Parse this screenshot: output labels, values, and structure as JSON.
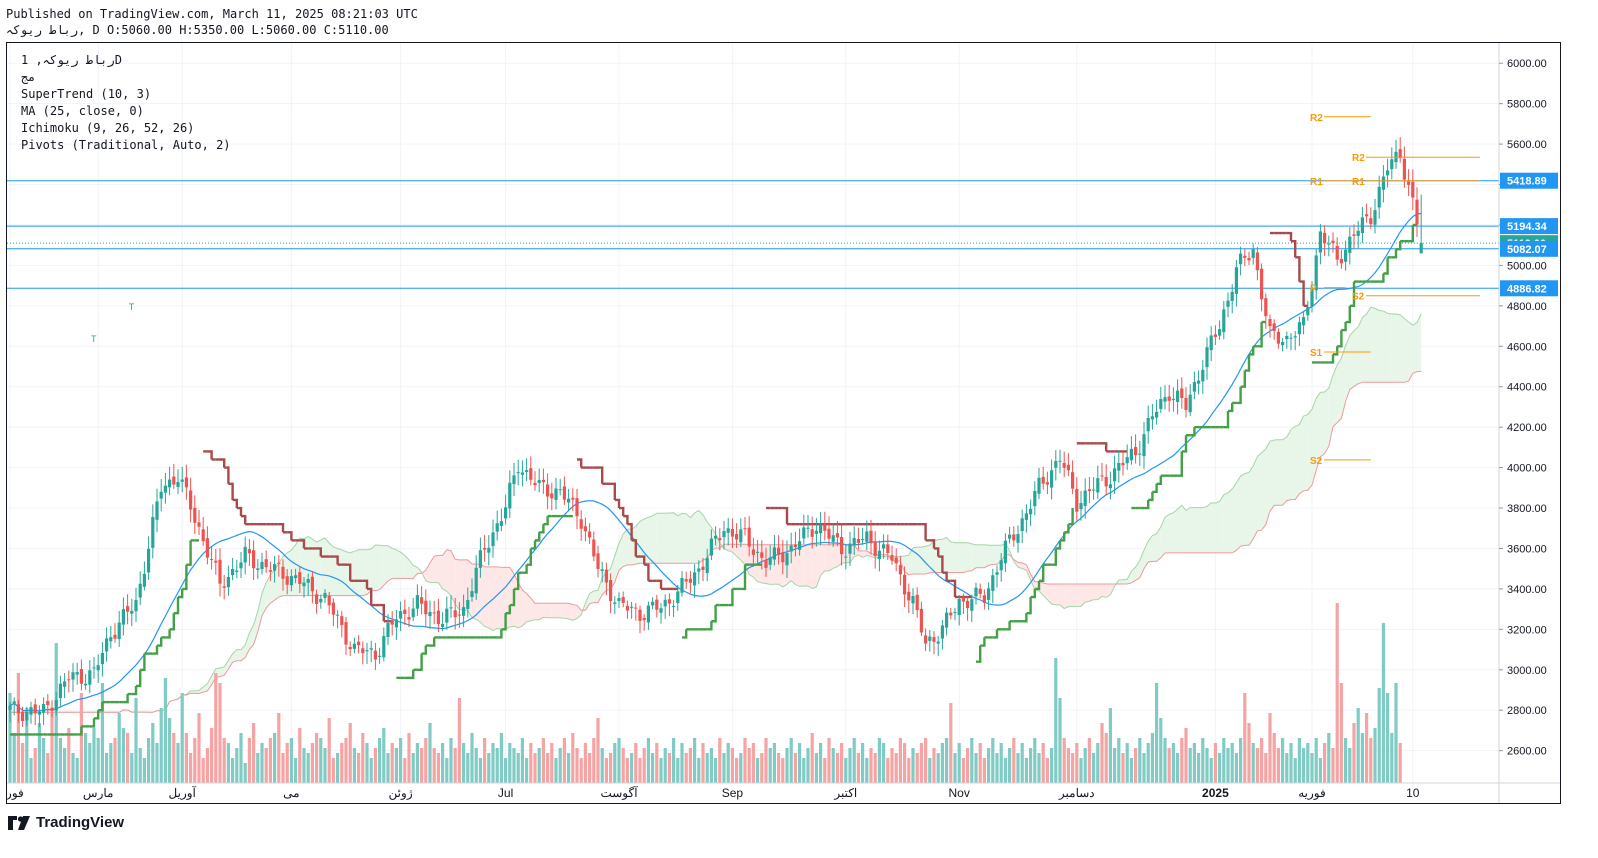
{
  "header": {
    "published_line": "Published on TradingView.com, March 11, 2025 08:21:03 UTC",
    "ohlc_line": "رباط ریوکہ, D O:5060.00 H:5350.00 L:5060.00 C:5110.00"
  },
  "legend": {
    "symbol_line": "رباط ریوکہ, 1D",
    "exchange_line": "مج",
    "indicators": [
      "SuperTrend (10, 3)",
      "MA (25, close, 0)",
      "Ichimoku (9, 26, 52, 26)",
      "Pivots (Traditional, Auto, 2)"
    ]
  },
  "brand": {
    "name": "TradingView"
  },
  "colors": {
    "up": "#26a69a",
    "down": "#ef5350",
    "supertrend_up": "#43a047",
    "supertrend_down": "#a84a4a",
    "ma": "#2196f3",
    "pivot": "#ff9800",
    "hline": "#2196f3",
    "cloud_up": "#e8f5e9",
    "cloud_down": "#fde7e7"
  },
  "chart_data": {
    "type": "candlestick",
    "y_axis": {
      "min": 2440,
      "max": 6100,
      "ticks": [
        "2600.00",
        "2800.00",
        "3000.00",
        "3200.00",
        "3400.00",
        "3600.00",
        "3800.00",
        "4000.00",
        "4200.00",
        "4400.00",
        "4600.00",
        "4800.00",
        "5000.00",
        "5200.00",
        "5400.00",
        "5600.00",
        "5800.00",
        "6000.00"
      ]
    },
    "x_axis": {
      "labels": [
        {
          "text": "فوریه",
          "bar": 0
        },
        {
          "text": "مارس",
          "bar": 21
        },
        {
          "text": "آوریل",
          "bar": 41
        },
        {
          "text": "می",
          "bar": 67
        },
        {
          "text": "ژوئن",
          "bar": 93
        },
        {
          "text": "Jul",
          "bar": 118
        },
        {
          "text": "آگوست",
          "bar": 145
        },
        {
          "text": "Sep",
          "bar": 172
        },
        {
          "text": "اکتبر",
          "bar": 199
        },
        {
          "text": "Nov",
          "bar": 226
        },
        {
          "text": "دسامبر",
          "bar": 254
        },
        {
          "text": "2025",
          "bar": 287,
          "bold": true
        },
        {
          "text": "فوریه",
          "bar": 310
        },
        {
          "text": "10",
          "bar": 334
        }
      ]
    },
    "price_labels": [
      {
        "value": 5418.89,
        "text": "5418.89",
        "color": "#2196f3"
      },
      {
        "value": 5194.34,
        "text": "5194.34",
        "color": "#2196f3"
      },
      {
        "value": 5110.0,
        "text": "5110.00",
        "color": "#26a69a"
      },
      {
        "value": 5082.07,
        "text": "5082.07",
        "color": "#2196f3"
      },
      {
        "value": 4886.82,
        "text": "4886.82",
        "color": "#2196f3"
      }
    ],
    "pivot_levels": [
      {
        "label": "R2",
        "value": 5735,
        "from": 310,
        "to": 324
      },
      {
        "label": "R1",
        "value": 5418,
        "from": 310,
        "to": 322
      },
      {
        "label": "P",
        "value": 4890,
        "from": 310,
        "to": 318
      },
      {
        "label": "S1",
        "value": 4572,
        "from": 310,
        "to": 324
      },
      {
        "label": "S2",
        "value": 4038,
        "from": 310,
        "to": 324
      },
      {
        "label": "R2",
        "value": 5535,
        "from": 320,
        "to": 350
      },
      {
        "label": "R1",
        "value": 5418,
        "from": 320,
        "to": 350
      },
      {
        "label": "S2",
        "value": 4850,
        "from": 320,
        "to": 350
      }
    ],
    "markers": [
      {
        "bar": 20,
        "value": 4620,
        "text": "T"
      },
      {
        "bar": 29,
        "value": 4780,
        "text": "T"
      }
    ],
    "anchors": [
      [
        0,
        2800
      ],
      [
        8,
        2790
      ],
      [
        14,
        2960
      ],
      [
        20,
        2980
      ],
      [
        24,
        3180
      ],
      [
        30,
        3330
      ],
      [
        36,
        3900
      ],
      [
        40,
        3960
      ],
      [
        45,
        3700
      ],
      [
        50,
        3420
      ],
      [
        56,
        3560
      ],
      [
        62,
        3500
      ],
      [
        68,
        3450
      ],
      [
        75,
        3350
      ],
      [
        82,
        3100
      ],
      [
        87,
        3080
      ],
      [
        92,
        3260
      ],
      [
        97,
        3320
      ],
      [
        103,
        3250
      ],
      [
        108,
        3300
      ],
      [
        113,
        3600
      ],
      [
        118,
        3800
      ],
      [
        121,
        4020
      ],
      [
        126,
        3900
      ],
      [
        131,
        3880
      ],
      [
        136,
        3750
      ],
      [
        140,
        3500
      ],
      [
        145,
        3320
      ],
      [
        150,
        3280
      ],
      [
        155,
        3310
      ],
      [
        159,
        3380
      ],
      [
        164,
        3500
      ],
      [
        170,
        3700
      ],
      [
        175,
        3650
      ],
      [
        180,
        3530
      ],
      [
        186,
        3600
      ],
      [
        192,
        3720
      ],
      [
        198,
        3600
      ],
      [
        204,
        3650
      ],
      [
        210,
        3550
      ],
      [
        215,
        3330
      ],
      [
        218,
        3130
      ],
      [
        222,
        3200
      ],
      [
        226,
        3340
      ],
      [
        232,
        3360
      ],
      [
        236,
        3560
      ],
      [
        240,
        3700
      ],
      [
        245,
        3900
      ],
      [
        250,
        4050
      ],
      [
        254,
        3830
      ],
      [
        258,
        3900
      ],
      [
        262,
        3960
      ],
      [
        268,
        4080
      ],
      [
        272,
        4250
      ],
      [
        276,
        4380
      ],
      [
        280,
        4300
      ],
      [
        284,
        4520
      ],
      [
        288,
        4700
      ],
      [
        292,
        4980
      ],
      [
        296,
        5080
      ],
      [
        300,
        4650
      ],
      [
        304,
        4640
      ],
      [
        308,
        4700
      ],
      [
        312,
        5160
      ],
      [
        316,
        5030
      ],
      [
        320,
        5150
      ],
      [
        324,
        5250
      ],
      [
        328,
        5480
      ],
      [
        331,
        5560
      ],
      [
        334,
        5300
      ],
      [
        336,
        5110
      ]
    ],
    "volumes": [
      0.18,
      0.1,
      0.22,
      0.08,
      0.15,
      0.05,
      0.07,
      0.12,
      0.09,
      0.06,
      0.14,
      0.28,
      0.09,
      0.07,
      0.11,
      0.06,
      0.05,
      0.18,
      0.1,
      0.08,
      0.11,
      0.09,
      0.2,
      0.06,
      0.08,
      0.09,
      0.14,
      0.11,
      0.1,
      0.06,
      0.17,
      0.07,
      0.05,
      0.09,
      0.12,
      0.08,
      0.15,
      0.21,
      0.13,
      0.1,
      0.08,
      0.18,
      0.1,
      0.06,
      0.09,
      0.14,
      0.05,
      0.07,
      0.11,
      0.22,
      0.2,
      0.09,
      0.08,
      0.05,
      0.07,
      0.1,
      0.04,
      0.09,
      0.12,
      0.06,
      0.08,
      0.07,
      0.09,
      0.1,
      0.14,
      0.06,
      0.08,
      0.09,
      0.05,
      0.11,
      0.07,
      0.06,
      0.08,
      0.1,
      0.09,
      0.07,
      0.13,
      0.05,
      0.06,
      0.08,
      0.09,
      0.12,
      0.07,
      0.06,
      0.1,
      0.08,
      0.05,
      0.07,
      0.09,
      0.11,
      0.06,
      0.08,
      0.07,
      0.09,
      0.05,
      0.1,
      0.06,
      0.08,
      0.07,
      0.09,
      0.12,
      0.07,
      0.06,
      0.08,
      0.05,
      0.09,
      0.07,
      0.17,
      0.08,
      0.06,
      0.1,
      0.07,
      0.05,
      0.09,
      0.06,
      0.08,
      0.07,
      0.1,
      0.05,
      0.08,
      0.07,
      0.06,
      0.09,
      0.05,
      0.08,
      0.06,
      0.07,
      0.09,
      0.06,
      0.08,
      0.05,
      0.07,
      0.09,
      0.06,
      0.1,
      0.07,
      0.05,
      0.08,
      0.06,
      0.09,
      0.13,
      0.07,
      0.05,
      0.06,
      0.08,
      0.09,
      0.07,
      0.05,
      0.06,
      0.08,
      0.05,
      0.07,
      0.09,
      0.06,
      0.08,
      0.05,
      0.07,
      0.06,
      0.09,
      0.05,
      0.08,
      0.06,
      0.07,
      0.09,
      0.05,
      0.08,
      0.06,
      0.07,
      0.05,
      0.09,
      0.06,
      0.08,
      0.07,
      0.05,
      0.06,
      0.09,
      0.07,
      0.08,
      0.05,
      0.06,
      0.09,
      0.07,
      0.08,
      0.06,
      0.05,
      0.07,
      0.09,
      0.06,
      0.08,
      0.05,
      0.07,
      0.1,
      0.06,
      0.08,
      0.05,
      0.09,
      0.07,
      0.06,
      0.08,
      0.05,
      0.07,
      0.09,
      0.06,
      0.08,
      0.05,
      0.07,
      0.06,
      0.09,
      0.08,
      0.05,
      0.07,
      0.06,
      0.09,
      0.08,
      0.05,
      0.07,
      0.06,
      0.08,
      0.09,
      0.05,
      0.07,
      0.06,
      0.08,
      0.09,
      0.16,
      0.06,
      0.08,
      0.05,
      0.07,
      0.09,
      0.06,
      0.08,
      0.05,
      0.07,
      0.09,
      0.06,
      0.08,
      0.05,
      0.07,
      0.09,
      0.06,
      0.08,
      0.05,
      0.07,
      0.09,
      0.06,
      0.08,
      0.05,
      0.07,
      0.25,
      0.17,
      0.09,
      0.07,
      0.06,
      0.08,
      0.05,
      0.07,
      0.09,
      0.06,
      0.08,
      0.12,
      0.1,
      0.15,
      0.07,
      0.09,
      0.06,
      0.08,
      0.05,
      0.07,
      0.09,
      0.06,
      0.08,
      0.1,
      0.2,
      0.13,
      0.09,
      0.07,
      0.08,
      0.06,
      0.09,
      0.11,
      0.07,
      0.08,
      0.06,
      0.09,
      0.07,
      0.05,
      0.08,
      0.06,
      0.09,
      0.07,
      0.08,
      0.06,
      0.09,
      0.18,
      0.12,
      0.08,
      0.07,
      0.09,
      0.06,
      0.14,
      0.1,
      0.07,
      0.09,
      0.06,
      0.08,
      0.05,
      0.09,
      0.07,
      0.08,
      0.06,
      0.09,
      0.05,
      0.08,
      0.1,
      0.07,
      0.36,
      0.2,
      0.09,
      0.07,
      0.12,
      0.15,
      0.1,
      0.14,
      0.09,
      0.11,
      0.19,
      0.32,
      0.18,
      0.1,
      0.2,
      0.08
    ]
  }
}
